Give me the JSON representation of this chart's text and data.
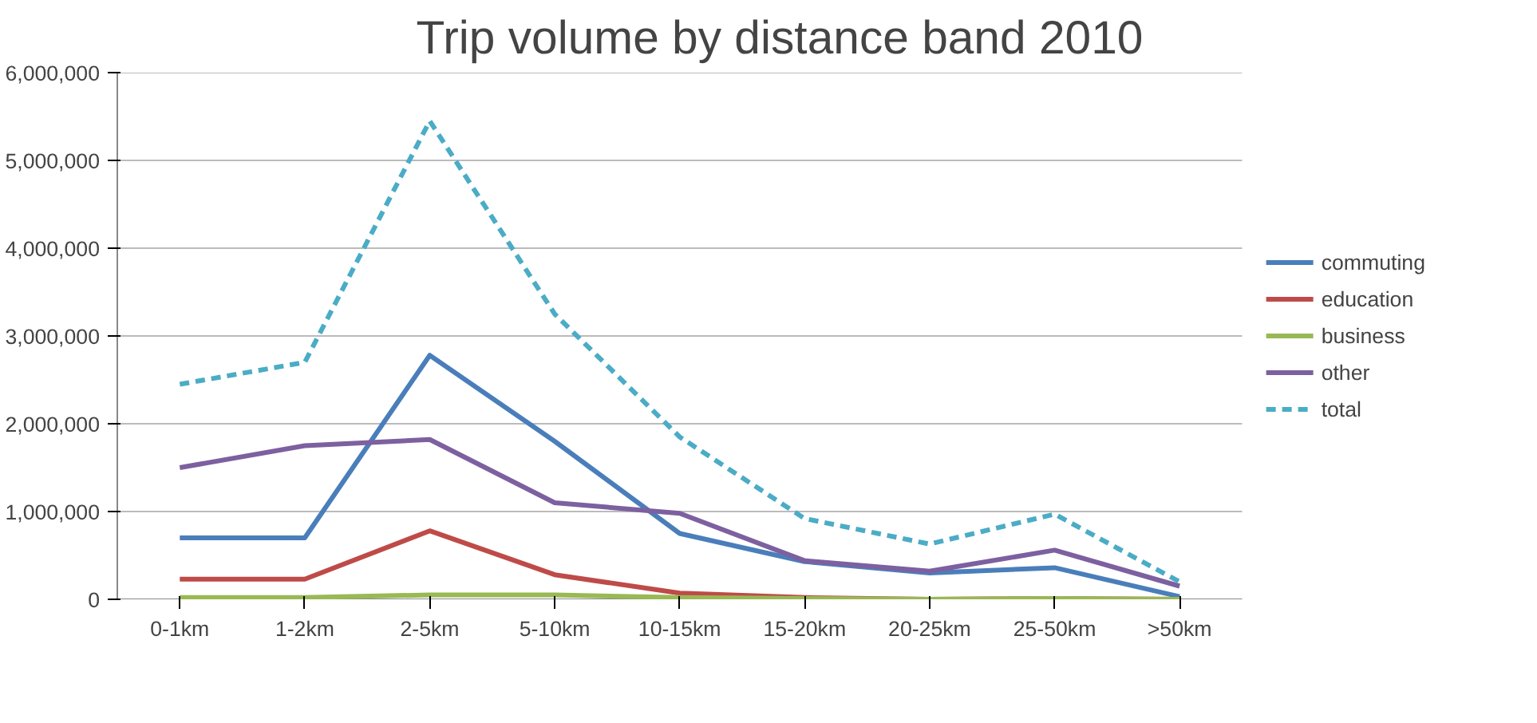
{
  "chart_data": {
    "type": "line",
    "title": "Trip volume by distance band 2010",
    "categories": [
      "0-1km",
      "1-2km",
      "2-5km",
      "5-10km",
      "10-15km",
      "15-20km",
      "20-25km",
      "25-50km",
      ">50km"
    ],
    "series": [
      {
        "name": "commuting",
        "color": "#4a7ebb",
        "values": [
          700000,
          700000,
          2780000,
          1800000,
          750000,
          430000,
          300000,
          360000,
          30000
        ]
      },
      {
        "name": "education",
        "color": "#be4b48",
        "values": [
          230000,
          230000,
          780000,
          280000,
          70000,
          20000,
          0,
          10000,
          0
        ]
      },
      {
        "name": "business",
        "color": "#98b954",
        "values": [
          20000,
          20000,
          50000,
          50000,
          20000,
          10000,
          0,
          10000,
          0
        ]
      },
      {
        "name": "other",
        "color": "#7d60a0",
        "values": [
          1500000,
          1750000,
          1820000,
          1100000,
          980000,
          440000,
          320000,
          560000,
          150000
        ]
      },
      {
        "name": "total",
        "color": "#4bacc6",
        "line_style": "dashed",
        "values": [
          2450000,
          2700000,
          5450000,
          3250000,
          1850000,
          920000,
          630000,
          970000,
          200000
        ]
      }
    ],
    "ylim": [
      0,
      6000000
    ],
    "yticks": [
      {
        "value": 0,
        "label": "0"
      },
      {
        "value": 1000000,
        "label": "1,000,000"
      },
      {
        "value": 2000000,
        "label": "2,000,000"
      },
      {
        "value": 3000000,
        "label": "3,000,000"
      },
      {
        "value": 4000000,
        "label": "4,000,000"
      },
      {
        "value": 5000000,
        "label": "5,000,000"
      },
      {
        "value": 6000000,
        "label": "6,000,000"
      }
    ],
    "grid": "y",
    "legend": "right",
    "line_style": "solid",
    "marker": "none"
  }
}
